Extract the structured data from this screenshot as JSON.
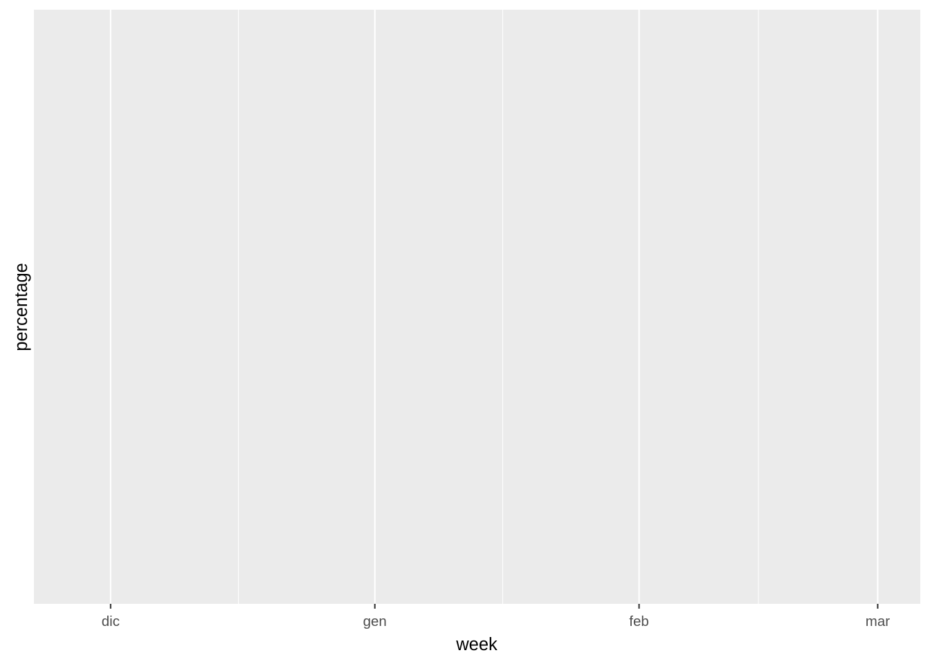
{
  "chart_data": {
    "type": "line",
    "title": "",
    "xlabel": "week",
    "ylabel": "percentage",
    "x_ticks": [
      {
        "label": "dic",
        "value": "2020-12-01"
      },
      {
        "label": "gen",
        "value": "2021-01-01"
      },
      {
        "label": "feb",
        "value": "2021-02-01"
      },
      {
        "label": "mar",
        "value": "2021-03-01"
      }
    ],
    "x_minor_breaks": [
      "2020-12-16",
      "2021-01-16",
      "2021-02-15"
    ],
    "xlim": [
      "2020-11-22",
      "2021-03-06"
    ],
    "y_ticks": [],
    "series": [],
    "grid": true,
    "legend": "none",
    "colors": {
      "panel_background": "#ebebeb",
      "gridline": "#ffffff",
      "tick_label": "#4d4d4d",
      "axis_title": "#000000"
    }
  }
}
